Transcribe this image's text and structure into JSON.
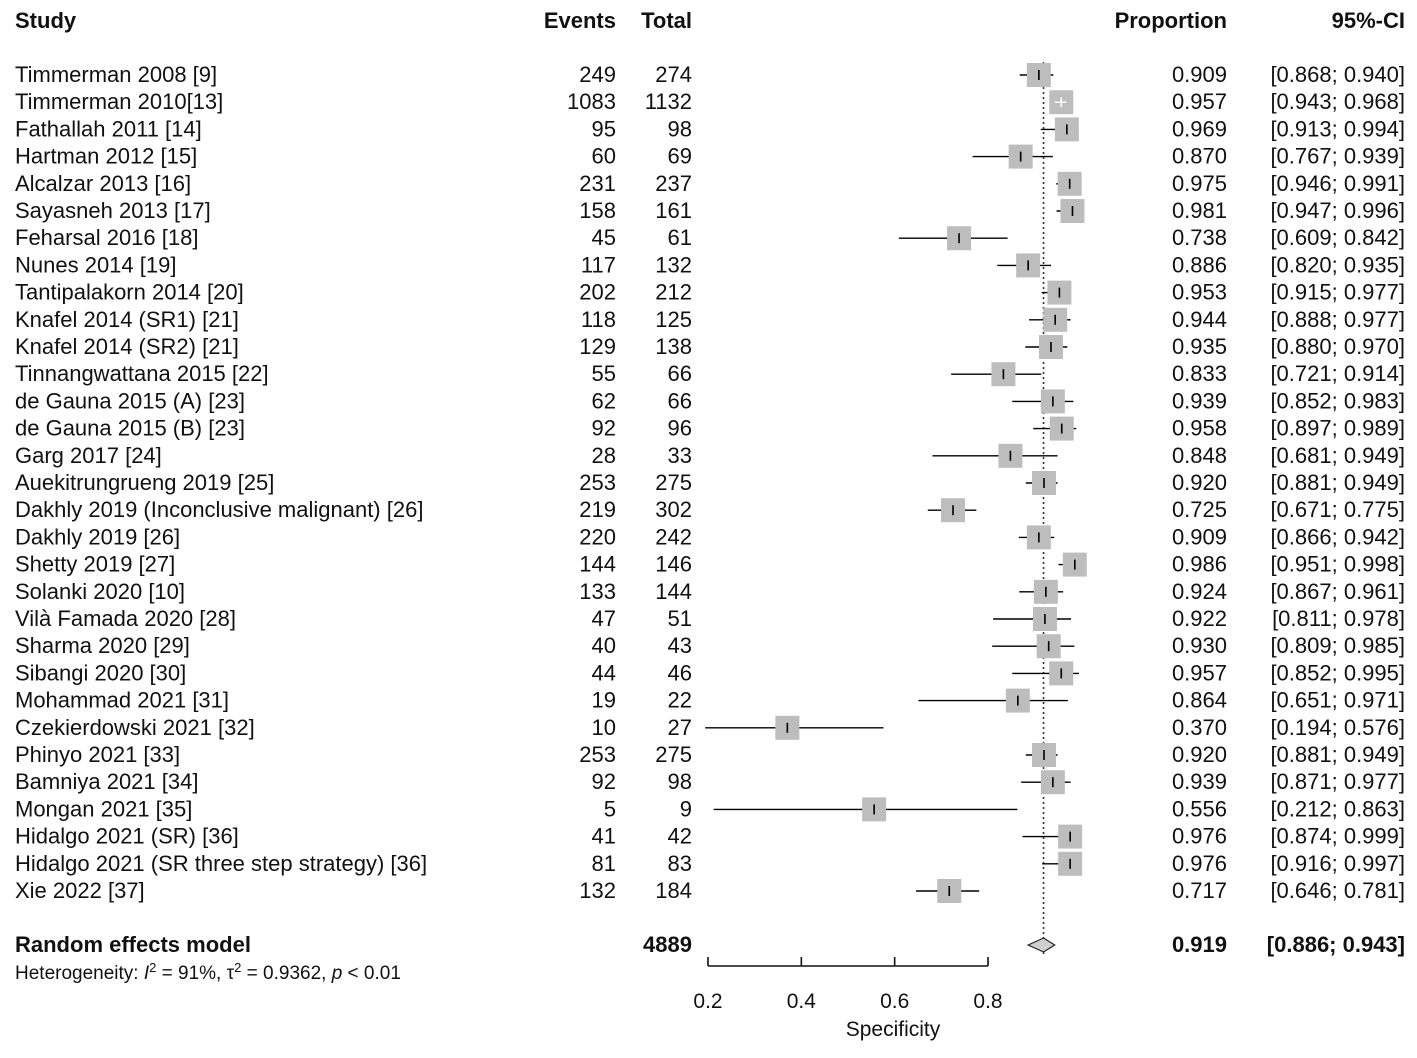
{
  "chart_data": {
    "type": "forest",
    "headers": {
      "study": "Study",
      "events": "Events",
      "total": "Total",
      "proportion": "Proportion",
      "ci": "95%-CI"
    },
    "studies": [
      {
        "study": "Timmerman 2008 [9]",
        "events": "249",
        "total": "274",
        "prop_label": "0.909",
        "ci_label": "[0.868; 0.940]",
        "prop": 0.909,
        "lo": 0.868,
        "hi": 0.94
      },
      {
        "study": "Timmerman 2010[13]",
        "events": "1083",
        "total": "1132",
        "prop_label": "0.957",
        "ci_label": "[0.943; 0.968]",
        "prop": 0.957,
        "lo": 0.943,
        "hi": 0.968
      },
      {
        "study": "Fathallah 2011 [14]",
        "events": "95",
        "total": "98",
        "prop_label": "0.969",
        "ci_label": "[0.913; 0.994]",
        "prop": 0.969,
        "lo": 0.913,
        "hi": 0.994
      },
      {
        "study": "Hartman 2012 [15]",
        "events": "60",
        "total": "69",
        "prop_label": "0.870",
        "ci_label": "[0.767; 0.939]",
        "prop": 0.87,
        "lo": 0.767,
        "hi": 0.939
      },
      {
        "study": "Alcalzar 2013 [16]",
        "events": "231",
        "total": "237",
        "prop_label": "0.975",
        "ci_label": "[0.946; 0.991]",
        "prop": 0.975,
        "lo": 0.946,
        "hi": 0.991
      },
      {
        "study": "Sayasneh 2013 [17]",
        "events": "158",
        "total": "161",
        "prop_label": "0.981",
        "ci_label": "[0.947; 0.996]",
        "prop": 0.981,
        "lo": 0.947,
        "hi": 0.996
      },
      {
        "study": "Feharsal 2016 [18]",
        "events": "45",
        "total": "61",
        "prop_label": "0.738",
        "ci_label": "[0.609; 0.842]",
        "prop": 0.738,
        "lo": 0.609,
        "hi": 0.842
      },
      {
        "study": "Nunes 2014 [19]",
        "events": "117",
        "total": "132",
        "prop_label": "0.886",
        "ci_label": "[0.820; 0.935]",
        "prop": 0.886,
        "lo": 0.82,
        "hi": 0.935
      },
      {
        "study": "Tantipalakorn 2014 [20]",
        "events": "202",
        "total": "212",
        "prop_label": "0.953",
        "ci_label": "[0.915; 0.977]",
        "prop": 0.953,
        "lo": 0.915,
        "hi": 0.977
      },
      {
        "study": "Knafel 2014  (SR1) [21]",
        "events": "118",
        "total": "125",
        "prop_label": "0.944",
        "ci_label": "[0.888; 0.977]",
        "prop": 0.944,
        "lo": 0.888,
        "hi": 0.977
      },
      {
        "study": "Knafel 2014 (SR2) [21]",
        "events": "129",
        "total": "138",
        "prop_label": "0.935",
        "ci_label": "[0.880; 0.970]",
        "prop": 0.935,
        "lo": 0.88,
        "hi": 0.97
      },
      {
        "study": "Tinnangwattana 2015 [22]",
        "events": "55",
        "total": "66",
        "prop_label": "0.833",
        "ci_label": "[0.721; 0.914]",
        "prop": 0.833,
        "lo": 0.721,
        "hi": 0.914
      },
      {
        "study": "de Gauna 2015 (A) [23]",
        "events": "62",
        "total": "66",
        "prop_label": "0.939",
        "ci_label": "[0.852; 0.983]",
        "prop": 0.939,
        "lo": 0.852,
        "hi": 0.983
      },
      {
        "study": "de Gauna 2015 (B) [23]",
        "events": "92",
        "total": "96",
        "prop_label": "0.958",
        "ci_label": "[0.897; 0.989]",
        "prop": 0.958,
        "lo": 0.897,
        "hi": 0.989
      },
      {
        "study": "Garg 2017 [24]",
        "events": "28",
        "total": "33",
        "prop_label": "0.848",
        "ci_label": "[0.681; 0.949]",
        "prop": 0.848,
        "lo": 0.681,
        "hi": 0.949
      },
      {
        "study": "Auekitrungrueng  2019 [25]",
        "events": "253",
        "total": "275",
        "prop_label": "0.920",
        "ci_label": "[0.881; 0.949]",
        "prop": 0.92,
        "lo": 0.881,
        "hi": 0.949
      },
      {
        "study": "Dakhly  2019 (Inconclusive malignant) [26]",
        "events": "219",
        "total": "302",
        "prop_label": "0.725",
        "ci_label": "[0.671; 0.775]",
        "prop": 0.725,
        "lo": 0.671,
        "hi": 0.775
      },
      {
        "study": "Dakhly  2019 [26]",
        "events": "220",
        "total": "242",
        "prop_label": "0.909",
        "ci_label": "[0.866; 0.942]",
        "prop": 0.909,
        "lo": 0.866,
        "hi": 0.942
      },
      {
        "study": "Shetty  2019 [27]",
        "events": "144",
        "total": "146",
        "prop_label": "0.986",
        "ci_label": "[0.951; 0.998]",
        "prop": 0.986,
        "lo": 0.951,
        "hi": 0.998
      },
      {
        "study": "Solanki  2020 [10]",
        "events": "133",
        "total": "144",
        "prop_label": "0.924",
        "ci_label": "[0.867; 0.961]",
        "prop": 0.924,
        "lo": 0.867,
        "hi": 0.961
      },
      {
        "study": "Vilà Famada 2020 [28]",
        "events": "47",
        "total": "51",
        "prop_label": "0.922",
        "ci_label": "[0.811; 0.978]",
        "prop": 0.922,
        "lo": 0.811,
        "hi": 0.978
      },
      {
        "study": "Sharma  2020 [29]",
        "events": "40",
        "total": "43",
        "prop_label": "0.930",
        "ci_label": "[0.809; 0.985]",
        "prop": 0.93,
        "lo": 0.809,
        "hi": 0.985
      },
      {
        "study": "Sibangi 2020 [30]",
        "events": "44",
        "total": "46",
        "prop_label": "0.957",
        "ci_label": "[0.852; 0.995]",
        "prop": 0.957,
        "lo": 0.852,
        "hi": 0.995
      },
      {
        "study": "Mohammad 2021 [31]",
        "events": "19",
        "total": "22",
        "prop_label": "0.864",
        "ci_label": "[0.651; 0.971]",
        "prop": 0.864,
        "lo": 0.651,
        "hi": 0.971
      },
      {
        "study": "Czekierdowski  2021 [32]",
        "events": "10",
        "total": "27",
        "prop_label": "0.370",
        "ci_label": "[0.194; 0.576]",
        "prop": 0.37,
        "lo": 0.194,
        "hi": 0.576
      },
      {
        "study": "Phinyo  2021 [33]",
        "events": "253",
        "total": "275",
        "prop_label": "0.920",
        "ci_label": "[0.881; 0.949]",
        "prop": 0.92,
        "lo": 0.881,
        "hi": 0.949
      },
      {
        "study": "Bamniya  2021 [34]",
        "events": "92",
        "total": "98",
        "prop_label": "0.939",
        "ci_label": "[0.871; 0.977]",
        "prop": 0.939,
        "lo": 0.871,
        "hi": 0.977
      },
      {
        "study": "Mongan  2021 [35]",
        "events": "5",
        "total": "9",
        "prop_label": "0.556",
        "ci_label": "[0.212; 0.863]",
        "prop": 0.556,
        "lo": 0.212,
        "hi": 0.863
      },
      {
        "study": "Hidalgo  2021 (SR) [36]",
        "events": "41",
        "total": "42",
        "prop_label": "0.976",
        "ci_label": "[0.874; 0.999]",
        "prop": 0.976,
        "lo": 0.874,
        "hi": 0.999
      },
      {
        "study": "Hidalgo  2021 (SR three step strategy) [36]",
        "events": "81",
        "total": "83",
        "prop_label": "0.976",
        "ci_label": "[0.916; 0.997]",
        "prop": 0.976,
        "lo": 0.916,
        "hi": 0.997
      },
      {
        "study": "Xie 2022 [37]",
        "events": "132",
        "total": "184",
        "prop_label": "0.717",
        "ci_label": "[0.646; 0.781]",
        "prop": 0.717,
        "lo": 0.646,
        "hi": 0.781
      }
    ],
    "summary": {
      "label": "Random effects model",
      "total": "4889",
      "prop_label": "0.919",
      "ci_label": "[0.886; 0.943]",
      "prop": 0.919,
      "lo": 0.886,
      "hi": 0.943
    },
    "heterogeneity": {
      "prefix": "Heterogeneity: ",
      "i2_symbol": "I",
      "i2_value": " = 91%, ",
      "tau_symbol": "τ",
      "tau_value": " = 0.9362, ",
      "p_symbol": "p",
      "p_value": " < 0.01"
    },
    "x_axis": {
      "label": "Specificity",
      "ticks": [
        0.2,
        0.4,
        0.6,
        0.8
      ],
      "tick_labels": [
        "0.2",
        "0.4",
        "0.6",
        "0.8"
      ],
      "range": [
        0.2,
        0.8
      ]
    },
    "reference_value": 0.919,
    "colors": {
      "square": "#bdbdbd",
      "line": "#000000",
      "white_tick": "#ffffff"
    }
  }
}
